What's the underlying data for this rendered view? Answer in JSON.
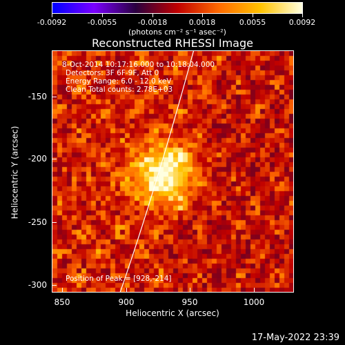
{
  "colorbar": {
    "tick_labels": [
      "-0.0092",
      "-0.0055",
      "-0.0018",
      "0.0018",
      "0.0055",
      "0.0092"
    ],
    "units": "(photons cm⁻² s⁻¹ asec⁻²)",
    "colors": [
      "#0000ff",
      "#7a00ff",
      "#2a0040",
      "#c00000",
      "#ff6a00",
      "#ffc200",
      "#ffffe0"
    ]
  },
  "title": "Reconstructed RHESSI Image",
  "annotations": {
    "time_range": "8-Oct-2014 10:17:16.000 to 10:18:04.000",
    "detectors": "Detectors: 3F 6F-9F, Att 0",
    "energy": "Energy Range: 6.0 - 12.0 keV",
    "clean": "Clean     Total counts: 2.78E+03",
    "peak": "Position of Peak = [928,-214]"
  },
  "axes": {
    "xlabel": "Heliocentric X (arcsec)",
    "ylabel": "Heliocentric Y (arcsec)",
    "xticks": [
      "850",
      "900",
      "950",
      "1000"
    ],
    "yticks": [
      "-150",
      "-200",
      "-250",
      "-300"
    ]
  },
  "footer": {
    "date": "17-May-2022 23:39"
  },
  "image": {
    "peak_x": 928,
    "peak_y": -214,
    "xlim": [
      840,
      1030
    ],
    "ylim": [
      -305,
      -118
    ]
  }
}
